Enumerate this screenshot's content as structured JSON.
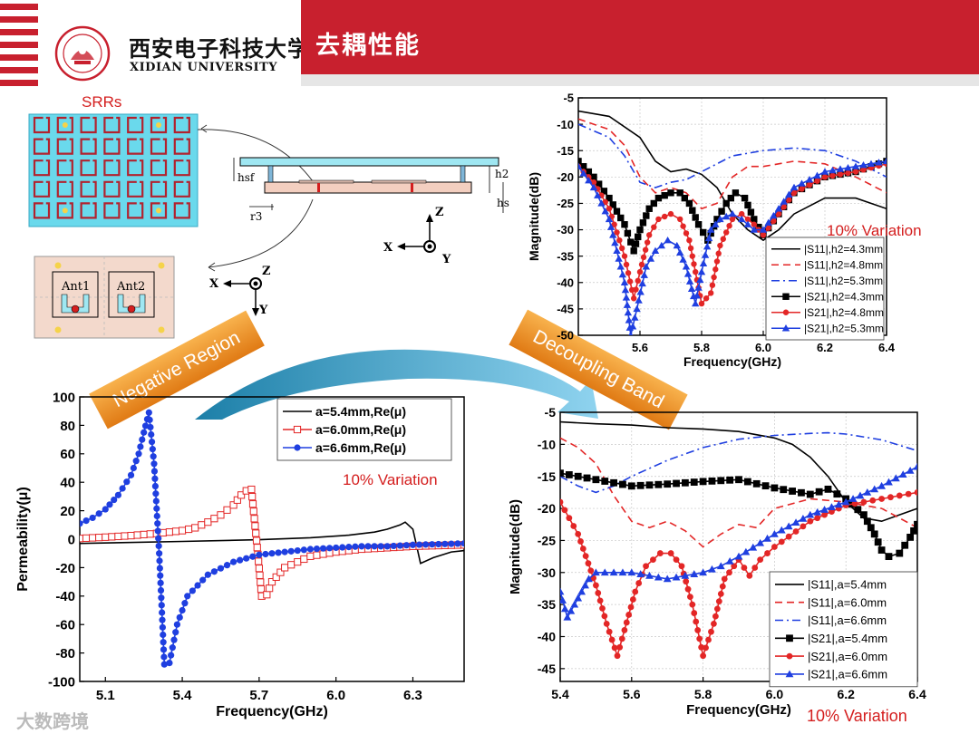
{
  "header": {
    "title": "去耦性能",
    "university_cn": "西安电子科技大学",
    "university_en": "XIDIAN UNIVERSITY",
    "colors": {
      "banner": "#c8202e"
    }
  },
  "diagram": {
    "srr_label": "SRRs",
    "dims": [
      "hsf",
      "h2",
      "hs",
      "r3"
    ],
    "axis_labels_1": {
      "z": "Z",
      "x": "X",
      "y": "Y"
    },
    "axis_labels_2": {
      "z": "Z",
      "x": "X",
      "y": "Y"
    },
    "antennas": [
      "Ant1",
      "Ant2"
    ]
  },
  "callouts": {
    "negative": "Negative Region",
    "decoupling": "Decoupling Band"
  },
  "watermark": "大数跨境",
  "chart_data": [
    {
      "type": "line",
      "xlabel": "Frequency(GHz)",
      "ylabel": "Permeability(μ)",
      "xlim": [
        5.0,
        6.5
      ],
      "ylim": [
        -100,
        100
      ],
      "xticks": [
        "5.1",
        "5.4",
        "5.7",
        "6.0",
        "6.3"
      ],
      "yticks": [
        "100",
        "80",
        "60",
        "40",
        "20",
        "0",
        "-20",
        "-40",
        "-60",
        "-80",
        "-100"
      ],
      "annotation": "10% Variation",
      "series": [
        {
          "name": "a=5.4mm,Re(μ)",
          "color": "#000000",
          "marker": "none",
          "x": [
            5.0,
            5.4,
            5.7,
            5.9,
            6.05,
            6.15,
            6.2,
            6.25,
            6.27,
            6.3,
            6.33,
            6.38,
            6.45,
            6.5
          ],
          "y": [
            -3,
            -1.6,
            -0.4,
            1,
            2.8,
            5,
            7,
            10,
            12,
            7,
            -17,
            -13,
            -9,
            -8
          ]
        },
        {
          "name": "a=6.0mm,Re(μ)",
          "color": "#e32626",
          "marker": "square",
          "x": [
            5.0,
            5.1,
            5.2,
            5.3,
            5.4,
            5.45,
            5.5,
            5.55,
            5.6,
            5.63,
            5.65,
            5.67,
            5.69,
            5.71,
            5.73,
            5.75,
            5.8,
            5.9,
            6.0,
            6.1,
            6.2,
            6.3,
            6.4,
            6.5
          ],
          "y": [
            0.5,
            1.4,
            2.5,
            4,
            6,
            8,
            12,
            17,
            24,
            31,
            34,
            35,
            -1,
            -40,
            -39,
            -30,
            -20,
            -12,
            -9,
            -7,
            -6,
            -5,
            -4.5,
            -4
          ]
        },
        {
          "name": "a=6.6mm,Re(μ)",
          "color": "#1f3fe0",
          "marker": "circle",
          "x": [
            5.0,
            5.05,
            5.1,
            5.15,
            5.2,
            5.23,
            5.25,
            5.27,
            5.29,
            5.31,
            5.33,
            5.35,
            5.38,
            5.42,
            5.5,
            5.6,
            5.7,
            5.8,
            5.9,
            6.0,
            6.1,
            6.2,
            6.3,
            6.4,
            6.5
          ],
          "y": [
            11,
            15,
            21,
            31,
            45,
            60,
            75,
            89,
            53,
            -10,
            -88,
            -87,
            -60,
            -40,
            -25,
            -16,
            -11,
            -9,
            -7,
            -6,
            -5,
            -5,
            -4,
            -3.5,
            -3
          ]
        }
      ]
    },
    {
      "type": "line",
      "xlabel": "Frequency(GHz)",
      "ylabel": "Magnitude(dB)",
      "xlim": [
        5.4,
        6.4
      ],
      "ylim": [
        -50,
        -5
      ],
      "xticks": [
        "5.6",
        "5.8",
        "6.0",
        "6.2",
        "6.4"
      ],
      "yticks": [
        "-5",
        "-10",
        "-15",
        "-20",
        "-25",
        "-30",
        "-35",
        "-40",
        "-45",
        "-50"
      ],
      "annotation": "10% Variation",
      "series": [
        {
          "name": "|S11|,h2=4.3mm",
          "color": "#000000",
          "style": "solid",
          "marker": "none",
          "x": [
            5.4,
            5.5,
            5.6,
            5.65,
            5.7,
            5.75,
            5.8,
            5.85,
            5.9,
            5.95,
            6.0,
            6.05,
            6.1,
            6.2,
            6.3,
            6.4
          ],
          "y": [
            -7.5,
            -8.5,
            -12.5,
            -17,
            -19,
            -18.5,
            -19.5,
            -22,
            -27,
            -30,
            -32,
            -30,
            -27,
            -24,
            -24,
            -26
          ]
        },
        {
          "name": "|S11|,h2=4.8mm",
          "color": "#e32626",
          "style": "dashed",
          "marker": "none",
          "x": [
            5.4,
            5.5,
            5.55,
            5.6,
            5.65,
            5.7,
            5.75,
            5.8,
            5.85,
            5.9,
            5.95,
            6.0,
            6.1,
            6.2,
            6.3,
            6.4
          ],
          "y": [
            -9,
            -11,
            -14,
            -20,
            -23,
            -22,
            -23,
            -26,
            -25,
            -20,
            -18,
            -18,
            -17,
            -17.5,
            -20,
            -23
          ]
        },
        {
          "name": "|S11|,h2=5.3mm",
          "color": "#1f3fe0",
          "style": "dashdot",
          "marker": "none",
          "x": [
            5.4,
            5.5,
            5.55,
            5.6,
            5.65,
            5.7,
            5.75,
            5.8,
            5.9,
            6.0,
            6.1,
            6.2,
            6.3,
            6.4
          ],
          "y": [
            -10,
            -12.5,
            -16,
            -21,
            -22,
            -21,
            -20.5,
            -19,
            -16,
            -15,
            -14.5,
            -15,
            -17,
            -20
          ]
        },
        {
          "name": "|S21|,h2=4.3mm",
          "color": "#000000",
          "style": "solid",
          "marker": "square",
          "x": [
            5.4,
            5.45,
            5.5,
            5.55,
            5.58,
            5.6,
            5.63,
            5.66,
            5.7,
            5.73,
            5.76,
            5.79,
            5.82,
            5.85,
            5.88,
            5.91,
            5.94,
            5.97,
            6.0,
            6.05,
            6.1,
            6.2,
            6.3,
            6.4
          ],
          "y": [
            -17,
            -20,
            -24,
            -29,
            -34,
            -30,
            -26,
            -24,
            -23,
            -23,
            -25,
            -29,
            -32,
            -28,
            -25,
            -23,
            -24,
            -28,
            -31,
            -27,
            -23,
            -20,
            -19,
            -17
          ]
        },
        {
          "name": "|S21|,h2=4.8mm",
          "color": "#e32626",
          "style": "solid",
          "marker": "circle",
          "x": [
            5.4,
            5.45,
            5.5,
            5.55,
            5.58,
            5.6,
            5.63,
            5.66,
            5.7,
            5.73,
            5.76,
            5.8,
            5.83,
            5.86,
            5.9,
            5.93,
            5.97,
            6.0,
            6.05,
            6.1,
            6.2,
            6.3,
            6.4
          ],
          "y": [
            -18,
            -21,
            -26,
            -35,
            -43,
            -38,
            -31,
            -28,
            -27,
            -28,
            -32,
            -44,
            -42,
            -33,
            -28,
            -27,
            -29,
            -31,
            -27,
            -23,
            -20,
            -19,
            -17.5
          ]
        },
        {
          "name": "|S21|,h2=5.3mm",
          "color": "#1f3fe0",
          "style": "solid",
          "marker": "triangle",
          "x": [
            5.4,
            5.45,
            5.5,
            5.55,
            5.57,
            5.59,
            5.62,
            5.65,
            5.69,
            5.72,
            5.75,
            5.78,
            5.8,
            5.83,
            5.86,
            5.9,
            5.93,
            5.97,
            6.0,
            6.05,
            6.1,
            6.2,
            6.3,
            6.4
          ],
          "y": [
            -18,
            -22,
            -28,
            -40,
            -50,
            -45,
            -37,
            -34,
            -32,
            -33,
            -37,
            -44,
            -38,
            -30,
            -28,
            -27,
            -28,
            -30,
            -30,
            -26,
            -22,
            -19,
            -18,
            -17
          ]
        }
      ]
    },
    {
      "type": "line",
      "xlabel": "Frequency(GHz)",
      "ylabel": "Magnitude(dB)",
      "xlim": [
        5.4,
        6.4
      ],
      "ylim": [
        -47,
        -5
      ],
      "xticks": [
        "5.4",
        "5.6",
        "5.8",
        "6.0",
        "6.2",
        "6.4"
      ],
      "yticks": [
        "-5",
        "-10",
        "-15",
        "-20",
        "-25",
        "-30",
        "-35",
        "-40",
        "-45"
      ],
      "annotation": "10% Variation",
      "series": [
        {
          "name": "|S11|,a=5.4mm",
          "color": "#000000",
          "style": "solid",
          "marker": "none",
          "x": [
            5.4,
            5.5,
            5.6,
            5.7,
            5.8,
            5.9,
            6.0,
            6.05,
            6.1,
            6.15,
            6.2,
            6.25,
            6.3,
            6.35,
            6.4
          ],
          "y": [
            -6.5,
            -6.8,
            -7,
            -7.4,
            -7.6,
            -8,
            -9,
            -10,
            -12,
            -15,
            -19,
            -21.5,
            -22,
            -21,
            -20
          ]
        },
        {
          "name": "|S11|,a=6.0mm",
          "color": "#e32626",
          "style": "dashed",
          "marker": "none",
          "x": [
            5.4,
            5.45,
            5.5,
            5.55,
            5.6,
            5.65,
            5.7,
            5.75,
            5.8,
            5.85,
            5.9,
            5.95,
            6.0,
            6.1,
            6.2,
            6.3,
            6.4
          ],
          "y": [
            -9,
            -10.5,
            -13,
            -18,
            -22,
            -23,
            -22,
            -23.5,
            -26,
            -24,
            -22.5,
            -23,
            -20,
            -18.5,
            -19,
            -20,
            -23
          ]
        },
        {
          "name": "|S11|,a=6.6mm",
          "color": "#1f3fe0",
          "style": "dashdot",
          "marker": "none",
          "x": [
            5.4,
            5.45,
            5.5,
            5.55,
            5.6,
            5.7,
            5.8,
            5.9,
            6.0,
            6.1,
            6.15,
            6.2,
            6.3,
            6.4
          ],
          "y": [
            -15,
            -16.5,
            -17.5,
            -16.5,
            -15,
            -12.5,
            -10.5,
            -9.2,
            -8.6,
            -8.3,
            -8.2,
            -8.4,
            -9.3,
            -11
          ]
        },
        {
          "name": "|S21|,a=5.4mm",
          "color": "#000000",
          "style": "solid",
          "marker": "square",
          "x": [
            5.4,
            5.5,
            5.6,
            5.7,
            5.8,
            5.9,
            6.0,
            6.1,
            6.15,
            6.2,
            6.25,
            6.28,
            6.3,
            6.32,
            6.35,
            6.38,
            6.4
          ],
          "y": [
            -14.5,
            -15.5,
            -16.5,
            -16.2,
            -15.8,
            -15.5,
            -16.8,
            -17.8,
            -17,
            -18.5,
            -21,
            -24,
            -26.5,
            -27.5,
            -27,
            -24.5,
            -22.5
          ]
        },
        {
          "name": "|S21|,a=6.0mm",
          "color": "#e32626",
          "style": "solid",
          "marker": "circle",
          "x": [
            5.4,
            5.45,
            5.5,
            5.53,
            5.56,
            5.58,
            5.61,
            5.64,
            5.68,
            5.71,
            5.74,
            5.77,
            5.8,
            5.83,
            5.86,
            5.9,
            5.93,
            5.96,
            6.0,
            6.1,
            6.2,
            6.3,
            6.4
          ],
          "y": [
            -19,
            -24,
            -32,
            -38,
            -43,
            -39,
            -33,
            -29,
            -27,
            -27,
            -29,
            -35,
            -43,
            -38,
            -31,
            -28,
            -30.5,
            -28,
            -26,
            -22,
            -19.5,
            -18.5,
            -17.5
          ]
        },
        {
          "name": "|S21|,a=6.6mm",
          "color": "#1f3fe0",
          "style": "solid",
          "marker": "triangle",
          "x": [
            5.4,
            5.42,
            5.45,
            5.48,
            5.5,
            5.55,
            5.6,
            5.7,
            5.8,
            5.85,
            5.9,
            6.0,
            6.1,
            6.2,
            6.3,
            6.4
          ],
          "y": [
            -33,
            -37,
            -34,
            -31,
            -30,
            -30,
            -30,
            -31,
            -30,
            -29,
            -27.5,
            -24,
            -21,
            -19,
            -16.5,
            -13.5
          ]
        }
      ]
    }
  ]
}
